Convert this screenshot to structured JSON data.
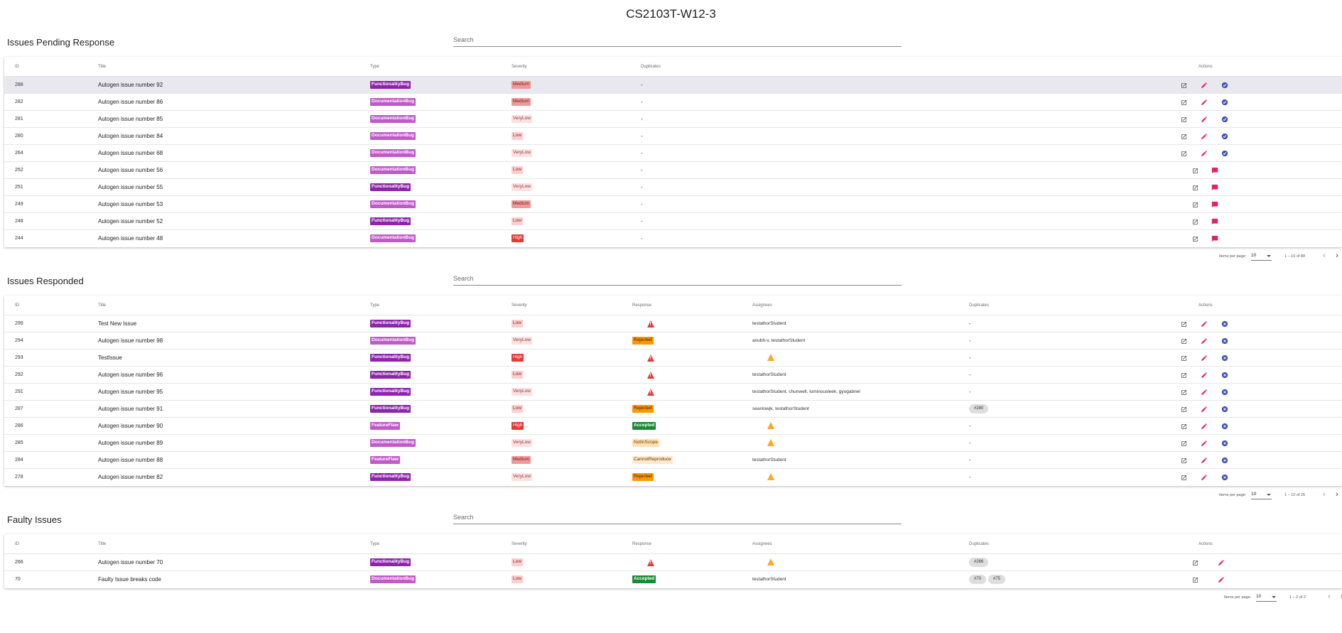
{
  "page_title": "CS2103T-W12-3",
  "colors": {
    "functionality_bug": "#8e24aa",
    "documentation_bug": "#c05ac9",
    "accent_pink": "#e91e63",
    "accent_blue": "#3f51b5",
    "rejected": "#ff9800",
    "accepted": "#1b8a35",
    "high": "#e53935"
  },
  "icons": {
    "view": "open-in-new-icon",
    "edit": "pencil-icon",
    "accept": "check-circle-icon",
    "respond": "comment-icon",
    "close": "close-circle-icon",
    "warning": "warning-icon"
  },
  "pending": {
    "header": "Issues Pending Response",
    "search_placeholder": "Search",
    "columns": {
      "id": "ID",
      "title": "Title",
      "type": "Type",
      "severity": "Severity",
      "duplicates": "Duplicates",
      "actions": "Actions"
    },
    "rows": [
      {
        "id": "288",
        "title": "Autogen issue number 92",
        "type": "FunctionalityBug",
        "severity": "Medium",
        "duplicates": "-",
        "actions": "edit",
        "highlight": true
      },
      {
        "id": "282",
        "title": "Autogen issue number 86",
        "type": "DocumentationBug",
        "severity": "Medium",
        "duplicates": "-",
        "actions": "edit"
      },
      {
        "id": "281",
        "title": "Autogen issue number 85",
        "type": "DocumentationBug",
        "severity": "VeryLow",
        "duplicates": "-",
        "actions": "edit"
      },
      {
        "id": "280",
        "title": "Autogen issue number 84",
        "type": "DocumentationBug",
        "severity": "Low",
        "duplicates": "-",
        "actions": "edit"
      },
      {
        "id": "264",
        "title": "Autogen issue number 68",
        "type": "DocumentationBug",
        "severity": "VeryLow",
        "duplicates": "-",
        "actions": "edit"
      },
      {
        "id": "252",
        "title": "Autogen issue number 56",
        "type": "DocumentationBug",
        "severity": "Low",
        "duplicates": "-",
        "actions": "respond"
      },
      {
        "id": "251",
        "title": "Autogen issue number 55",
        "type": "FunctionalityBug",
        "severity": "VeryLow",
        "duplicates": "-",
        "actions": "respond"
      },
      {
        "id": "249",
        "title": "Autogen issue number 53",
        "type": "DocumentationBug",
        "severity": "Medium",
        "duplicates": "-",
        "actions": "respond"
      },
      {
        "id": "248",
        "title": "Autogen issue number 52",
        "type": "FunctionalityBug",
        "severity": "Low",
        "duplicates": "-",
        "actions": "respond"
      },
      {
        "id": "244",
        "title": "Autogen issue number 48",
        "type": "DocumentationBug",
        "severity": "High",
        "duplicates": "-",
        "actions": "respond"
      }
    ],
    "paginator": {
      "items_per_page_label": "Items per page:",
      "page_size": "10",
      "range": "1 – 10 of 88"
    }
  },
  "responded": {
    "header": "Issues Responded",
    "search_placeholder": "Search",
    "columns": {
      "id": "ID",
      "title": "Title",
      "type": "Type",
      "severity": "Severity",
      "response": "Response",
      "assignees": "Assignees",
      "duplicates": "Duplicates",
      "actions": "Actions"
    },
    "rows": [
      {
        "id": "299",
        "title": "Test New Issue",
        "type": "FunctionalityBug",
        "severity": "Low",
        "response": "",
        "response_warn": "red",
        "assignees": "testathorStudent",
        "assignee_warn": "",
        "duplicates": [],
        "dup_text": "-"
      },
      {
        "id": "294",
        "title": "Autogen issue number 98",
        "type": "DocumentationBug",
        "severity": "VeryLow",
        "response": "Rejected",
        "response_warn": "",
        "assignees": "anubh-v, testathorStudent",
        "assignee_warn": "",
        "duplicates": [],
        "dup_text": "-"
      },
      {
        "id": "293",
        "title": "TestIssue",
        "type": "FunctionalityBug",
        "severity": "High",
        "response": "",
        "response_warn": "red",
        "assignees": "",
        "assignee_warn": "orange",
        "duplicates": [],
        "dup_text": "-"
      },
      {
        "id": "292",
        "title": "Autogen issue number 96",
        "type": "FunctionalityBug",
        "severity": "Low",
        "response": "",
        "response_warn": "red",
        "assignees": "testathorStudent",
        "assignee_warn": "",
        "duplicates": [],
        "dup_text": "-"
      },
      {
        "id": "291",
        "title": "Autogen issue number 95",
        "type": "FunctionalityBug",
        "severity": "VeryLow",
        "response": "",
        "response_warn": "red",
        "assignees": "testathorStudent, chunwell, luminousleek, gyogabriel",
        "assignee_warn": "",
        "duplicates": [],
        "dup_text": "-"
      },
      {
        "id": "287",
        "title": "Autogen issue number 91",
        "type": "FunctionalityBug",
        "severity": "Low",
        "response": "Rejected",
        "response_warn": "",
        "assignees": "seanlowjk, testathorStudent",
        "assignee_warn": "",
        "duplicates": [
          "#280"
        ],
        "dup_text": ""
      },
      {
        "id": "286",
        "title": "Autogen issue number 90",
        "type": "FeatureFlaw",
        "severity": "High",
        "response": "Accepted",
        "response_warn": "",
        "assignees": "",
        "assignee_warn": "orange",
        "duplicates": [],
        "dup_text": "-"
      },
      {
        "id": "285",
        "title": "Autogen issue number 89",
        "type": "DocumentationBug",
        "severity": "VeryLow",
        "response": "NotInScope",
        "response_warn": "",
        "assignees": "",
        "assignee_warn": "orange",
        "duplicates": [],
        "dup_text": "-"
      },
      {
        "id": "284",
        "title": "Autogen issue number 88",
        "type": "FeatureFlaw",
        "severity": "Medium",
        "response": "CannotReproduce",
        "response_warn": "",
        "assignees": "testathorStudent",
        "assignee_warn": "",
        "duplicates": [],
        "dup_text": "-"
      },
      {
        "id": "278",
        "title": "Autogen issue number 82",
        "type": "FunctionalityBug",
        "severity": "VeryLow",
        "response": "Rejected",
        "response_warn": "",
        "assignees": "",
        "assignee_warn": "orange",
        "duplicates": [],
        "dup_text": "-"
      }
    ],
    "paginator": {
      "items_per_page_label": "Items per page:",
      "page_size": "10",
      "range": "1 – 10 of 26"
    }
  },
  "faulty": {
    "header": "Faulty Issues",
    "search_placeholder": "Search",
    "columns": {
      "id": "ID",
      "title": "Title",
      "type": "Type",
      "severity": "Severity",
      "response": "Response",
      "assignees": "Assignees",
      "duplicates": "Duplicates",
      "actions": "Actions"
    },
    "rows": [
      {
        "id": "266",
        "title": "Autogen issue number 70",
        "type": "FunctionalityBug",
        "severity": "Low",
        "response": "",
        "response_warn": "red",
        "assignees": "",
        "assignee_warn": "orange",
        "duplicates": [
          "#266"
        ],
        "dup_text": ""
      },
      {
        "id": "70",
        "title": "Faulty Issue breaks code",
        "type": "DocumentationBug",
        "severity": "Low",
        "response": "Accepted",
        "response_warn": "",
        "assignees": "testathorStudent",
        "assignee_warn": "",
        "duplicates": [
          "#70",
          "#75"
        ],
        "dup_text": ""
      }
    ],
    "paginator": {
      "items_per_page_label": "Items per page:",
      "page_size": "10",
      "range": "1 – 2 of 2"
    }
  }
}
